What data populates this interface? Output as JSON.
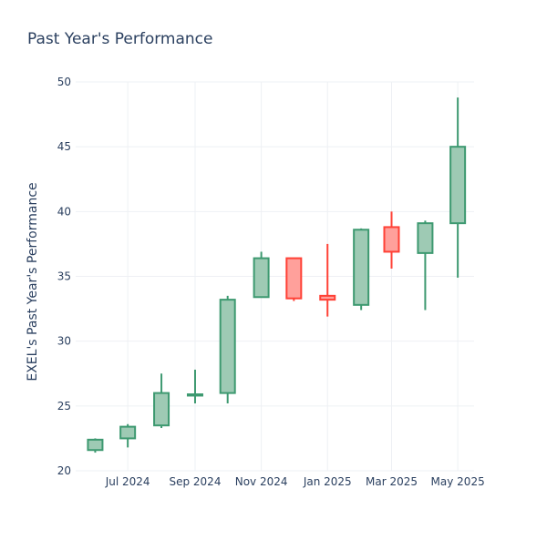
{
  "chart_data": {
    "type": "candlestick",
    "title": "Past Year's Performance",
    "ylabel": "EXEL's Past Year's Performance",
    "xlabel": "",
    "ylim": [
      20,
      50
    ],
    "yticks": [
      20,
      25,
      30,
      35,
      40,
      45,
      50
    ],
    "xticks": [
      "Jul 2024",
      "Sep 2024",
      "Nov 2024",
      "Jan 2025",
      "Mar 2025",
      "May 2025"
    ],
    "xrange": [
      "2024-05-14",
      "2025-05-16"
    ],
    "xtick_dates": [
      "2024-07-01",
      "2024-09-01",
      "2024-11-01",
      "2025-01-01",
      "2025-03-01",
      "2025-05-01"
    ],
    "grid": true,
    "increasing_color": "#3D9970",
    "increasing_fill": "#9ecab4",
    "decreasing_color": "#FF4136",
    "decreasing_fill": "#ffa09b",
    "candles": [
      {
        "date": "2024-06-01",
        "open": 21.6,
        "high": 22.5,
        "low": 21.4,
        "close": 22.4
      },
      {
        "date": "2024-07-01",
        "open": 22.5,
        "high": 23.6,
        "low": 21.8,
        "close": 23.4
      },
      {
        "date": "2024-08-01",
        "open": 23.5,
        "high": 27.5,
        "low": 23.3,
        "close": 26.0
      },
      {
        "date": "2024-09-01",
        "open": 25.8,
        "high": 27.8,
        "low": 25.2,
        "close": 25.9
      },
      {
        "date": "2024-10-01",
        "open": 26.0,
        "high": 33.5,
        "low": 25.2,
        "close": 33.2
      },
      {
        "date": "2024-11-01",
        "open": 33.4,
        "high": 36.9,
        "low": 33.4,
        "close": 36.4
      },
      {
        "date": "2024-12-01",
        "open": 36.4,
        "high": 36.4,
        "low": 33.1,
        "close": 33.3
      },
      {
        "date": "2025-01-01",
        "open": 33.5,
        "high": 37.5,
        "low": 31.9,
        "close": 33.2
      },
      {
        "date": "2025-02-01",
        "open": 32.8,
        "high": 38.7,
        "low": 32.4,
        "close": 38.6
      },
      {
        "date": "2025-03-01",
        "open": 38.8,
        "high": 40.0,
        "low": 35.6,
        "close": 36.9
      },
      {
        "date": "2025-04-01",
        "open": 36.8,
        "high": 39.3,
        "low": 32.4,
        "close": 39.1
      },
      {
        "date": "2025-05-01",
        "open": 39.1,
        "high": 48.8,
        "low": 34.9,
        "close": 45.0
      }
    ]
  }
}
